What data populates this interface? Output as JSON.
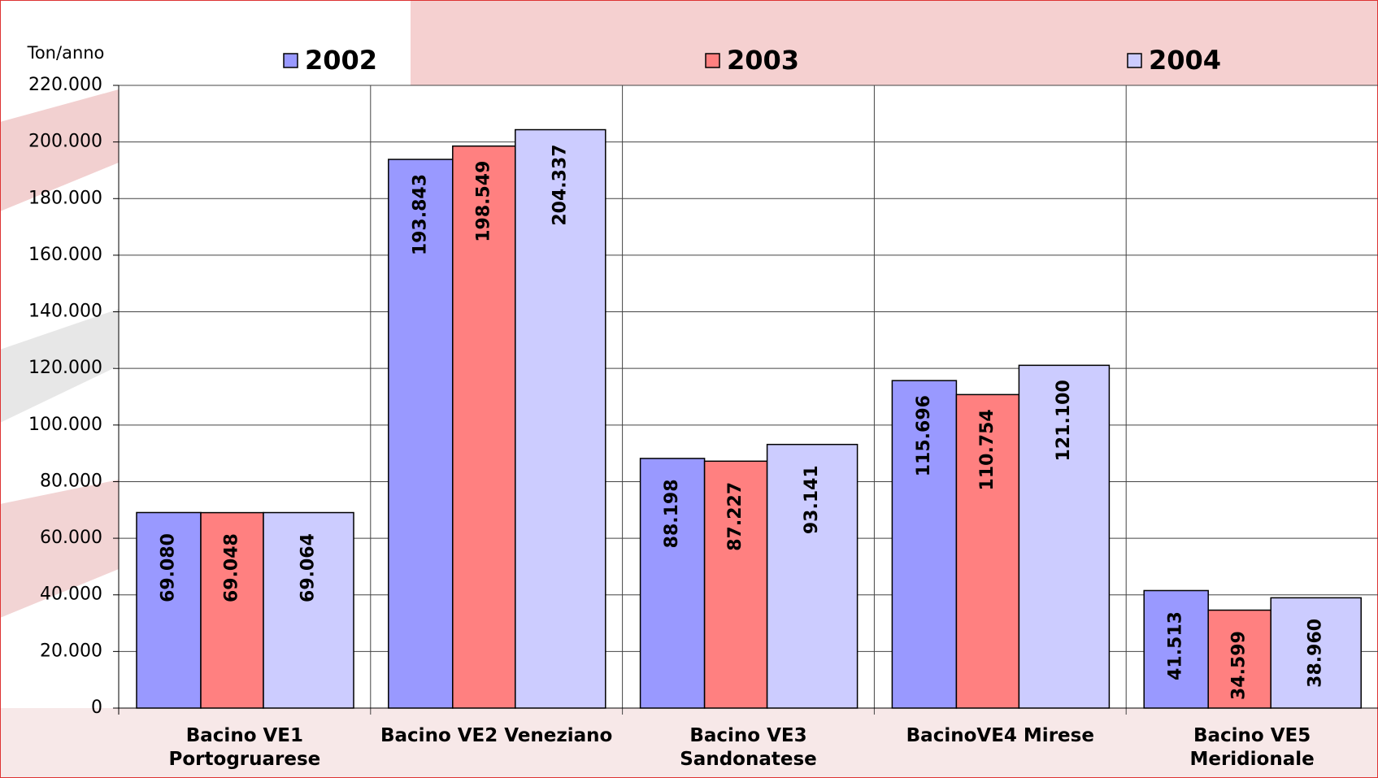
{
  "chart_data": {
    "type": "bar",
    "y_label": "Ton/anno",
    "categories": [
      "Bacino VE1 Portogruarese",
      "Bacino VE2 Veneziano",
      "Bacino VE3 Sandonatese",
      "BacinoVE4 Mirese",
      "Bacino VE5 Meridionale"
    ],
    "series": [
      {
        "name": "2002",
        "color": "#9999ff",
        "values": [
          69080,
          193843,
          88198,
          115696,
          41513
        ],
        "value_labels": [
          "69.080",
          "193.843",
          "88.198",
          "115.696",
          "41.513"
        ]
      },
      {
        "name": "2003",
        "color": "#ff8080",
        "values": [
          69048,
          198549,
          87227,
          110754,
          34599
        ],
        "value_labels": [
          "69.048",
          "198.549",
          "87.227",
          "110.754",
          "34.599"
        ]
      },
      {
        "name": "2004",
        "color": "#ccccff",
        "values": [
          69064,
          204337,
          93141,
          121100,
          38960
        ],
        "value_labels": [
          "69.064",
          "204.337",
          "93.141",
          "121.100",
          "38.960"
        ]
      }
    ],
    "ylim": [
      0,
      220000
    ],
    "yticks": [
      0,
      {
        "value": 20000,
        "label": "20.000"
      },
      {
        "value": 40000,
        "label": "40.000"
      },
      {
        "value": 60000,
        "label": "60.000"
      },
      {
        "value": 80000,
        "label": "80.000"
      },
      {
        "value": 100000,
        "label": "100.000"
      },
      {
        "value": 120000,
        "label": "120.000"
      },
      {
        "value": 140000,
        "label": "140.000"
      },
      {
        "value": 160000,
        "label": "160.000"
      },
      {
        "value": 180000,
        "label": "180.000"
      },
      {
        "value": 200000,
        "label": "200.000"
      },
      {
        "value": 220000,
        "label": "220.000"
      }
    ],
    "grid": true,
    "legend": "top"
  }
}
